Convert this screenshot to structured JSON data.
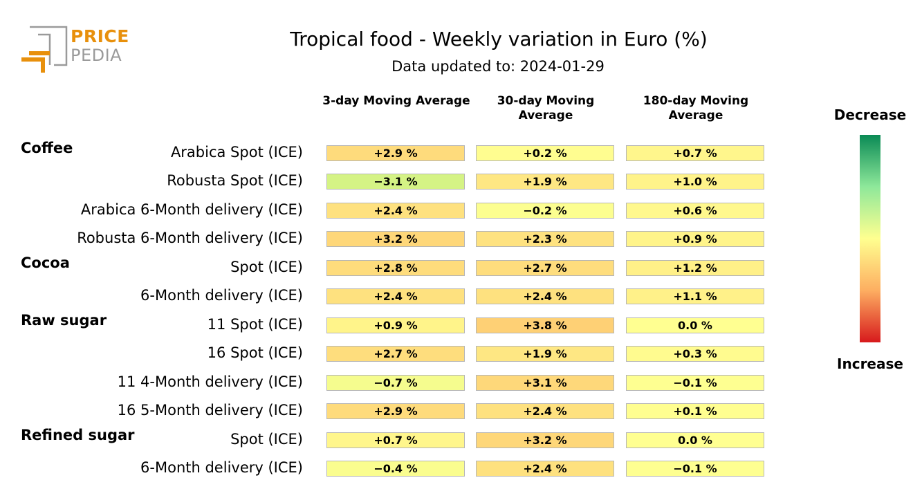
{
  "logo": {
    "word1": "PRICE",
    "word2": "PEDIA"
  },
  "title": "Tropical food - Weekly variation in Euro (%)",
  "subtitle": "Data updated to: 2024-01-29",
  "legend": {
    "top_label": "Decrease",
    "bottom_label": "Increase",
    "color_top": "#0a8a55",
    "color_mid": "#ffff90",
    "color_bottom": "#d7191c"
  },
  "chart_data": {
    "type": "table",
    "title": "Tropical food - Weekly variation in Euro (%)",
    "columns": [
      "3-day Moving Average",
      "30-day Moving Average",
      "180-day Moving Average"
    ],
    "groups": [
      {
        "name": "Coffee",
        "rows": [
          {
            "label": "Arabica Spot (ICE)",
            "values": [
              2.9,
              0.2,
              0.7
            ],
            "texts": [
              "+2.9 %",
              "+0.2 %",
              "+0.7 %"
            ]
          },
          {
            "label": "Robusta Spot (ICE)",
            "values": [
              -3.1,
              1.9,
              1.0
            ],
            "texts": [
              "−3.1 %",
              "+1.9 %",
              "+1.0 %"
            ]
          },
          {
            "label": "Arabica 6-Month delivery (ICE)",
            "values": [
              2.4,
              -0.2,
              0.6
            ],
            "texts": [
              "+2.4 %",
              "−0.2 %",
              "+0.6 %"
            ]
          },
          {
            "label": "Robusta 6-Month delivery (ICE)",
            "values": [
              3.2,
              2.3,
              0.9
            ],
            "texts": [
              "+3.2 %",
              "+2.3 %",
              "+0.9 %"
            ]
          }
        ]
      },
      {
        "name": "Cocoa",
        "rows": [
          {
            "label": "Spot (ICE)",
            "values": [
              2.8,
              2.7,
              1.2
            ],
            "texts": [
              "+2.8 %",
              "+2.7 %",
              "+1.2 %"
            ]
          },
          {
            "label": "6-Month delivery (ICE)",
            "values": [
              2.4,
              2.4,
              1.1
            ],
            "texts": [
              "+2.4 %",
              "+2.4 %",
              "+1.1 %"
            ]
          }
        ]
      },
      {
        "name": "Raw sugar",
        "rows": [
          {
            "label": "11 Spot (ICE)",
            "values": [
              0.9,
              3.8,
              0.0
            ],
            "texts": [
              "+0.9 %",
              "+3.8 %",
              "0.0 %"
            ]
          },
          {
            "label": "16 Spot (ICE)",
            "values": [
              2.7,
              1.9,
              0.3
            ],
            "texts": [
              "+2.7 %",
              "+1.9 %",
              "+0.3 %"
            ]
          },
          {
            "label": "11 4-Month delivery (ICE)",
            "values": [
              -0.7,
              3.1,
              -0.1
            ],
            "texts": [
              "−0.7 %",
              "+3.1 %",
              "−0.1 %"
            ]
          },
          {
            "label": "16 5-Month delivery (ICE)",
            "values": [
              2.9,
              2.4,
              0.1
            ],
            "texts": [
              "+2.9 %",
              "+2.4 %",
              "+0.1 %"
            ]
          }
        ]
      },
      {
        "name": "Refined sugar",
        "rows": [
          {
            "label": "Spot (ICE)",
            "values": [
              0.7,
              3.2,
              0.0
            ],
            "texts": [
              "+0.7 %",
              "+3.2 %",
              "0.0 %"
            ]
          },
          {
            "label": "6-Month delivery (ICE)",
            "values": [
              -0.4,
              2.4,
              -0.1
            ],
            "texts": [
              "−0.4 %",
              "+2.4 %",
              "−0.1 %"
            ]
          }
        ]
      }
    ]
  }
}
